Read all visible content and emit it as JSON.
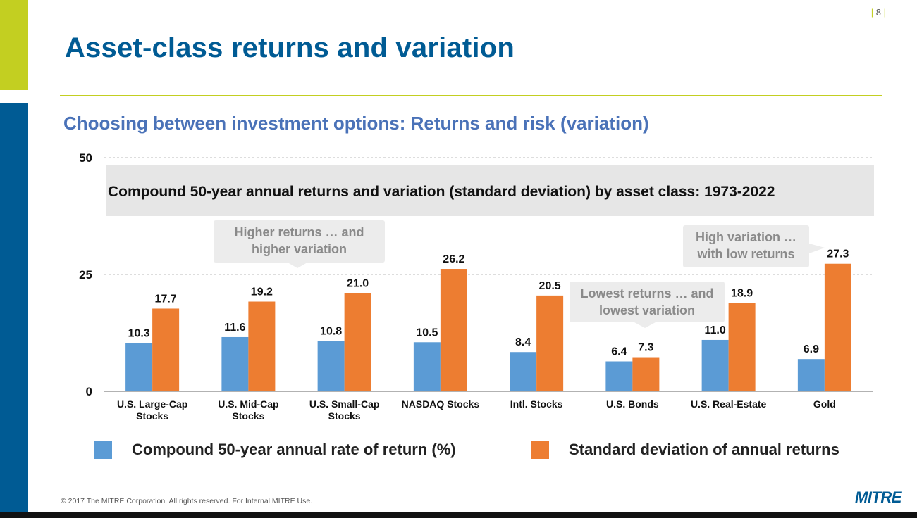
{
  "slide": {
    "page_number": "8",
    "title": "Asset-class returns and variation",
    "subtitle": "Choosing between investment options: Returns and risk (variation)",
    "footer": "© 2017 The MITRE Corporation. All rights reserved.  For Internal MITRE Use.",
    "logo": "MITRE"
  },
  "colors": {
    "accent_green": "#c3cf21",
    "brand_blue": "#005b94",
    "series_blue": "#5b9bd5",
    "series_orange": "#ed7d31"
  },
  "chart_data": {
    "type": "bar",
    "title": "Compound 50-year annual returns and variation (standard deviation) by asset class: 1973-2022",
    "categories": [
      [
        "U.S. Large-Cap",
        "Stocks"
      ],
      [
        "U.S. Mid-Cap",
        "Stocks"
      ],
      [
        "U.S. Small-Cap",
        "Stocks"
      ],
      [
        "NASDAQ Stocks"
      ],
      [
        "Intl. Stocks"
      ],
      [
        "U.S. Bonds"
      ],
      [
        "U.S. Real-Estate"
      ],
      [
        "Gold"
      ]
    ],
    "series": [
      {
        "name": "Compound 50-year annual rate of return (%)",
        "color": "#5b9bd5",
        "values": [
          10.3,
          11.6,
          10.8,
          10.5,
          8.4,
          6.4,
          11.0,
          6.9
        ],
        "labels": [
          "10.3",
          "11.6",
          "10.8",
          "10.5",
          "8.4",
          "6.4",
          "11.0",
          "6.9"
        ]
      },
      {
        "name": "Standard deviation of annual returns",
        "color": "#ed7d31",
        "values": [
          17.7,
          19.2,
          21.0,
          26.2,
          20.5,
          7.3,
          18.9,
          27.3
        ],
        "labels": [
          "17.7",
          "19.2",
          "21.0",
          "26.2",
          "20.5",
          "7.3",
          "18.9",
          "27.3"
        ]
      }
    ],
    "ylim": [
      0,
      50
    ],
    "yticks": [
      0,
      25,
      50
    ],
    "ytick_labels": [
      "0",
      "25",
      "50"
    ],
    "grid": "dashed at 25 and 50",
    "legend_position": "bottom",
    "annotations": [
      {
        "lines": [
          "Higher returns … and",
          "higher variation"
        ],
        "points_to": "U.S. Mid-Cap Stocks"
      },
      {
        "lines": [
          "High variation …",
          "with low returns"
        ],
        "points_to": "Gold"
      },
      {
        "lines": [
          "Lowest returns … and",
          "lowest variation"
        ],
        "points_to": "U.S. Bonds"
      }
    ]
  }
}
